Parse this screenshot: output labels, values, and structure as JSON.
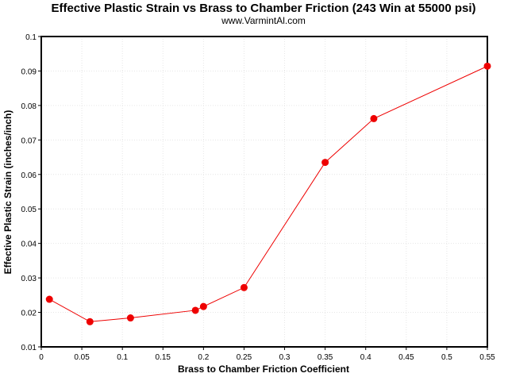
{
  "chart_data": {
    "type": "line",
    "title": "Effective Plastic Strain vs Brass to Chamber Friction (243 Win at 55000 psi)",
    "subtitle": "www.VarmintAl.com",
    "xlabel": "Brass to Chamber Friction Coefficient",
    "ylabel": "Effective Plastic Strain (inches/inch)",
    "xlim": [
      0,
      0.55
    ],
    "ylim": [
      0.01,
      0.1
    ],
    "xticks": [
      "0",
      "0.05",
      "0.1",
      "0.15",
      "0.2",
      "0.25",
      "0.3",
      "0.35",
      "0.4",
      "0.45",
      "0.5",
      "0.55"
    ],
    "yticks": [
      "0.01",
      "0.02",
      "0.03",
      "0.04",
      "0.05",
      "0.06",
      "0.07",
      "0.08",
      "0.09",
      "0.1"
    ],
    "grid": true,
    "series": [
      {
        "color": "#ee0000",
        "x": [
          0.01,
          0.06,
          0.11,
          0.19,
          0.2,
          0.25,
          0.35,
          0.41,
          0.55
        ],
        "y": [
          0.0238,
          0.0173,
          0.0184,
          0.0206,
          0.0217,
          0.0272,
          0.0635,
          0.0762,
          0.0914
        ]
      }
    ]
  }
}
